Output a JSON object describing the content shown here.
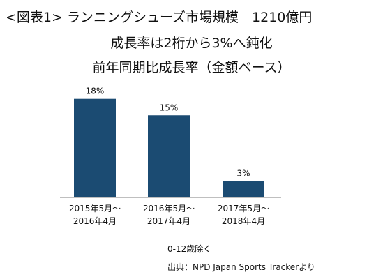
{
  "title": {
    "line1": "<図表1> ランニングシューズ市場規模　1210億円",
    "line2": "成長率は2桁から3%へ鈍化",
    "line3": "前年同期比成長率（金額ベース）"
  },
  "chart_data": {
    "type": "bar",
    "categories": [
      [
        "2015年5月～",
        "2016年4月"
      ],
      [
        "2016年5月～",
        "2017年4月"
      ],
      [
        "2017年5月～",
        "2018年4月"
      ]
    ],
    "values": [
      18,
      15,
      3
    ],
    "value_labels": [
      "18%",
      "15%",
      "3%"
    ],
    "unit": "%",
    "ylim": [
      0,
      20
    ],
    "bar_color": "#1b4b72",
    "grid": false,
    "legend": "none"
  },
  "notes": {
    "exclusion": "0-12歳除く",
    "source": "出典：NPD Japan Sports Trackerより"
  }
}
